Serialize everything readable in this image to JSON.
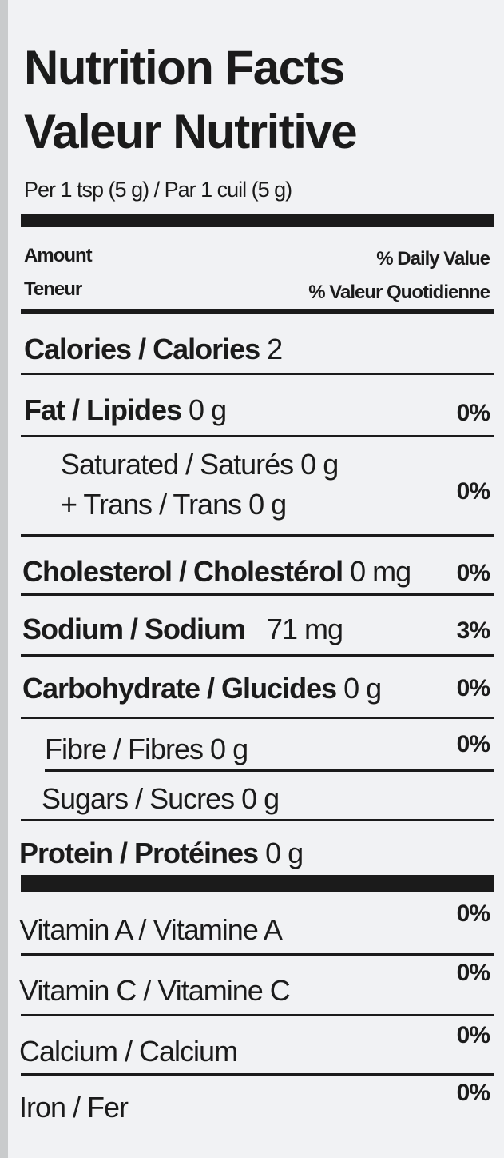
{
  "header": {
    "title_en": "Nutrition Facts",
    "title_fr": "Valeur Nutritive",
    "serving": "Per 1 tsp (5 g) / Par 1 cuil (5 g)"
  },
  "columns": {
    "amount_en": "Amount",
    "amount_fr": "Teneur",
    "dv_en": "% Daily Value",
    "dv_fr": "% Valeur Quotidienne"
  },
  "calories": {
    "label": "Calories / Calories",
    "value": "2"
  },
  "nutrients": {
    "fat": {
      "label": "Fat / Lipides",
      "value": "0 g",
      "dv": "0%"
    },
    "saturated": {
      "label": "Saturated / Saturés 0 g",
      "dv": "0%"
    },
    "trans": {
      "label": "+ Trans / Trans 0 g"
    },
    "cholesterol": {
      "label": "Cholesterol / Cholestérol",
      "value": "0 mg",
      "dv": "0%"
    },
    "sodium": {
      "label": "Sodium / Sodium",
      "value": "71 mg",
      "dv": "3%"
    },
    "carbohydrate": {
      "label": "Carbohydrate / Glucides",
      "value": "0 g",
      "dv": "0%"
    },
    "fibre": {
      "label": "Fibre / Fibres 0 g",
      "dv": "0%"
    },
    "sugars": {
      "label": "Sugars / Sucres 0 g"
    },
    "protein": {
      "label": "Protein / Protéines",
      "value": "0 g"
    }
  },
  "vitamins": [
    {
      "label": "Vitamin A / Vitamine A",
      "dv": "0%"
    },
    {
      "label": "Vitamin C / Vitamine C",
      "dv": "0%"
    },
    {
      "label": "Calcium / Calcium",
      "dv": "0%"
    },
    {
      "label": "Iron / Fer",
      "dv": "0%"
    }
  ]
}
